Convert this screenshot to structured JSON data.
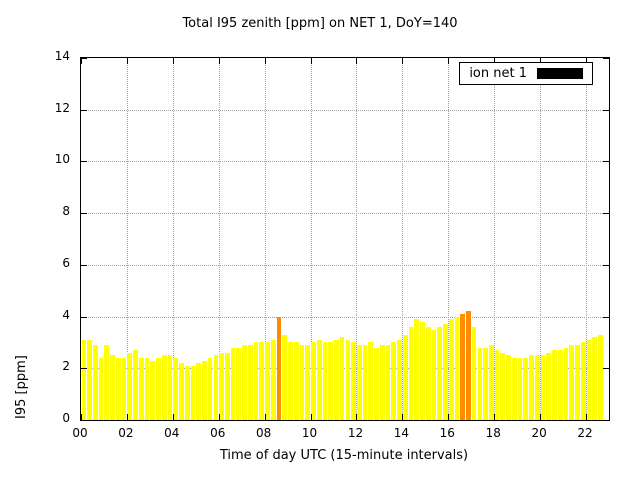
{
  "legend": {
    "label": "ion net 1",
    "swatch_color": "#000000"
  },
  "chart_data": {
    "type": "bar",
    "title": "Total I95 zenith [ppm] on NET 1, DoY=140",
    "xlabel": "Time of day UTC (15-minute intervals)",
    "ylabel": "I95 [ppm]",
    "xlim": [
      0,
      23
    ],
    "ylim": [
      0,
      14
    ],
    "x_ticks": [
      "00",
      "02",
      "04",
      "06",
      "08",
      "10",
      "12",
      "14",
      "16",
      "18",
      "20",
      "22"
    ],
    "x_tick_hours": [
      0,
      2,
      4,
      6,
      8,
      10,
      12,
      14,
      16,
      18,
      20,
      22
    ],
    "y_ticks": [
      0,
      2,
      4,
      6,
      8,
      10,
      12,
      14
    ],
    "grid": true,
    "legend_position": "top-right",
    "interval_minutes": 15,
    "start_hour": 0,
    "series_name": "ion net 1",
    "colors": {
      "default": "#ffff00",
      "highlight": "#ff8c00"
    },
    "values": [
      3.1,
      3.1,
      2.9,
      2.4,
      2.9,
      2.5,
      2.4,
      2.4,
      2.6,
      2.7,
      2.4,
      2.4,
      2.3,
      2.4,
      2.5,
      2.5,
      2.4,
      2.2,
      2.1,
      2.1,
      2.2,
      2.3,
      2.4,
      2.5,
      2.6,
      2.6,
      2.8,
      2.8,
      2.9,
      2.9,
      3.0,
      3.0,
      3.0,
      3.1,
      4.0,
      3.3,
      3.0,
      3.0,
      2.9,
      2.9,
      3.0,
      3.1,
      3.0,
      3.0,
      3.1,
      3.2,
      3.1,
      3.0,
      2.9,
      2.9,
      3.0,
      2.8,
      2.9,
      2.9,
      3.0,
      3.1,
      3.3,
      3.6,
      3.9,
      3.8,
      3.6,
      3.5,
      3.6,
      3.7,
      3.9,
      4.0,
      4.1,
      4.2,
      3.6,
      2.8,
      2.8,
      2.9,
      2.7,
      2.6,
      2.5,
      2.4,
      2.4,
      2.4,
      2.5,
      2.5,
      2.5,
      2.6,
      2.7,
      2.7,
      2.8,
      2.9,
      2.9,
      3.0,
      3.1,
      3.2,
      3.3
    ],
    "highlight_indices": [
      34,
      66,
      67
    ]
  }
}
